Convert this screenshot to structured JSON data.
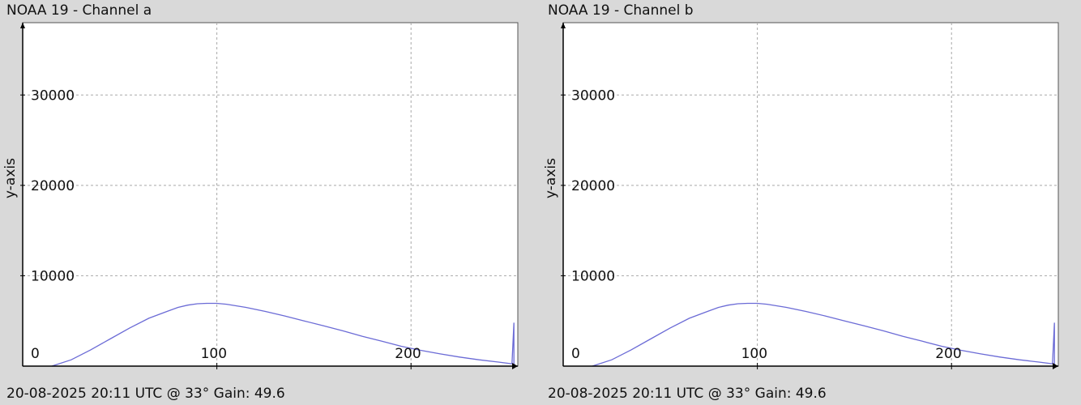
{
  "colors": {
    "background": "#d9d9d9",
    "plot_area": "#ffffff",
    "series": "#6b6bd6",
    "grid": "#a8a8a8",
    "axis": "#000000"
  },
  "chart_data": [
    {
      "type": "line",
      "title": "NOAA 19 - Channel a",
      "ylabel": "y-axis",
      "xlabel": "",
      "footer": "20-08-2025 20:11 UTC @ 33° Gain: 49.6",
      "xlim": [
        0,
        255
      ],
      "ylim": [
        0,
        38000
      ],
      "xticks": [
        0,
        100,
        200
      ],
      "yticks": [
        0,
        10000,
        20000,
        30000
      ],
      "grid": true,
      "series": [
        {
          "x": [
            15,
            25,
            35,
            45,
            55,
            65,
            75,
            80,
            85,
            90,
            95,
            100,
            105,
            115,
            125,
            135,
            145,
            155,
            165,
            175,
            185,
            195,
            205,
            215,
            225,
            235,
            245,
            252,
            253,
            253
          ],
          "y": [
            0,
            700,
            1800,
            3000,
            4200,
            5300,
            6100,
            6500,
            6750,
            6900,
            6950,
            6950,
            6850,
            6500,
            6050,
            5550,
            5000,
            4450,
            3900,
            3300,
            2750,
            2200,
            1750,
            1350,
            1000,
            700,
            450,
            250,
            4800,
            0
          ]
        }
      ]
    },
    {
      "type": "line",
      "title": "NOAA 19 - Channel b",
      "ylabel": "y-axis",
      "xlabel": "",
      "footer": "20-08-2025 20:11 UTC @ 33° Gain: 49.6",
      "xlim": [
        0,
        255
      ],
      "ylim": [
        0,
        38000
      ],
      "xticks": [
        0,
        100,
        200
      ],
      "yticks": [
        0,
        10000,
        20000,
        30000
      ],
      "grid": true,
      "series": [
        {
          "x": [
            15,
            25,
            35,
            45,
            55,
            65,
            75,
            80,
            85,
            90,
            95,
            100,
            105,
            115,
            125,
            135,
            145,
            155,
            165,
            175,
            185,
            195,
            205,
            215,
            225,
            235,
            245,
            252,
            253,
            253
          ],
          "y": [
            0,
            700,
            1800,
            3000,
            4200,
            5300,
            6100,
            6500,
            6750,
            6900,
            6950,
            6950,
            6850,
            6500,
            6050,
            5550,
            5000,
            4450,
            3900,
            3300,
            2750,
            2200,
            1750,
            1350,
            1000,
            700,
            450,
            250,
            4800,
            0
          ]
        }
      ]
    }
  ]
}
